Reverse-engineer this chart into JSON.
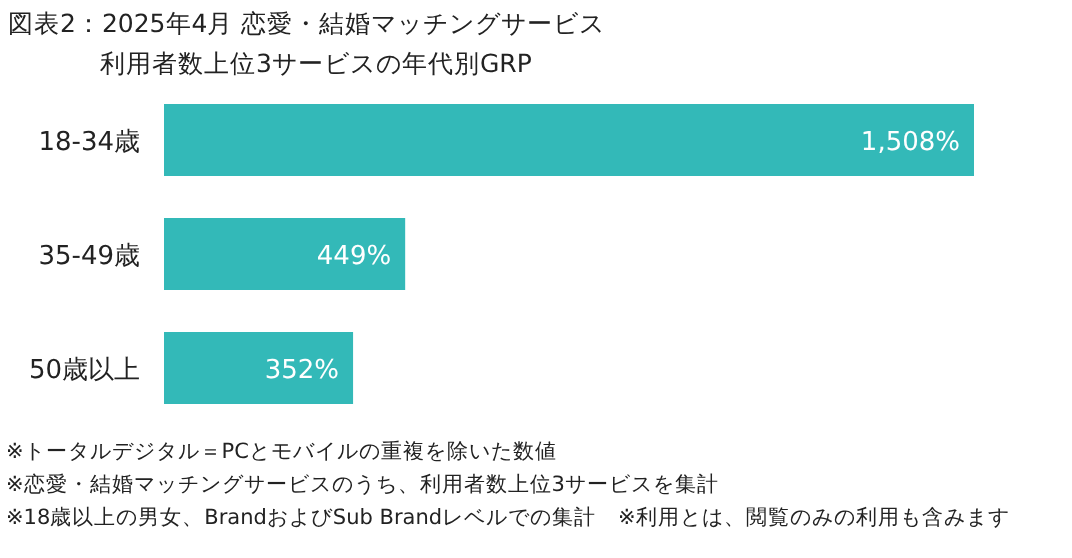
{
  "chart_data": {
    "type": "bar",
    "orientation": "horizontal",
    "title": "図表2：2025年4月 恋愛・結婚マッチングサービス",
    "subtitle": "利用者数上位3サービスの年代別GRP",
    "categories": [
      "18-34歳",
      "35-49歳",
      "50歳以上"
    ],
    "values": [
      1508,
      449,
      352
    ],
    "value_labels": [
      "1,508%",
      "449%",
      "352%"
    ],
    "color": "#33b9b8",
    "annotations": [
      "※トータルデジタル＝PCとモバイルの重複を除いた数値",
      "※恋愛・結婚マッチングサービスのうち、利用者数上位3サービスを集計",
      "※18歳以上の男女、BrandおよびSub Brandレベルでの集計　※利用とは、閲覧のみの利用も含みます"
    ]
  }
}
